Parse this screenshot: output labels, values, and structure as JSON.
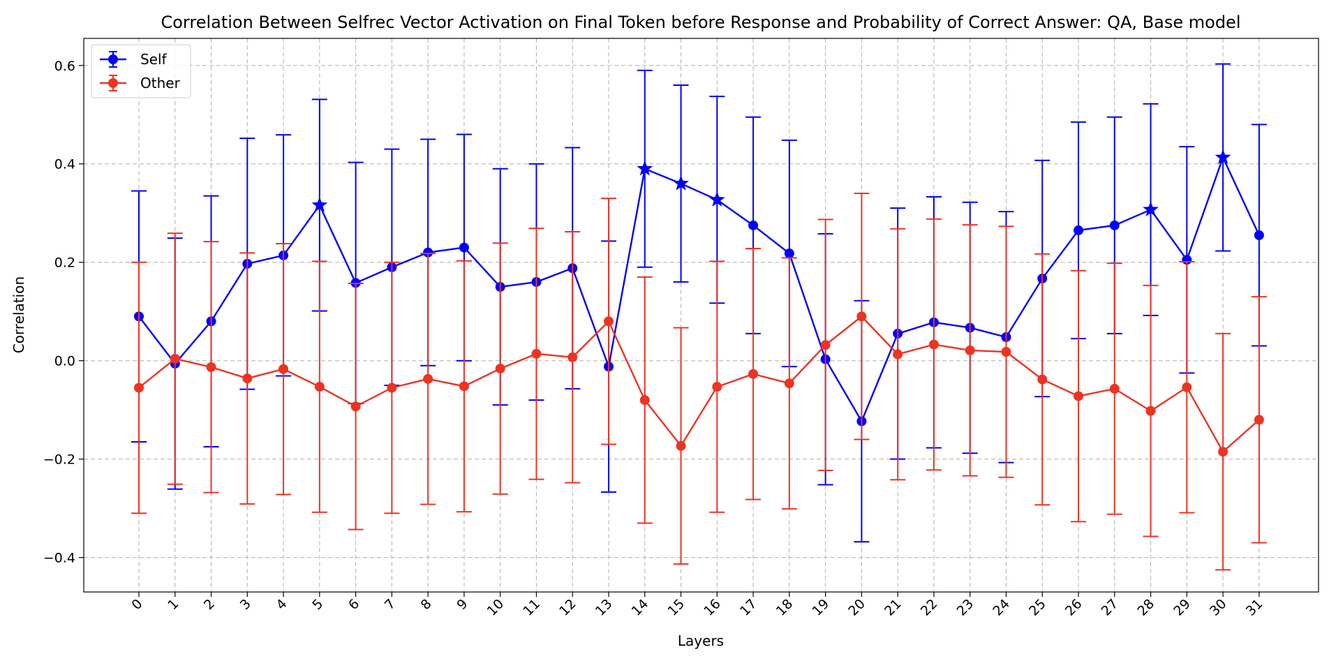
{
  "chart_data": {
    "type": "line",
    "title": "Correlation Between Selfrec Vector Activation on Final Token before Response and Probability of Correct Answer: QA, Base model",
    "xlabel": "Layers",
    "ylabel": "Correlation",
    "x": [
      0,
      1,
      2,
      3,
      4,
      5,
      6,
      7,
      8,
      9,
      10,
      11,
      12,
      13,
      14,
      15,
      16,
      17,
      18,
      19,
      20,
      21,
      22,
      23,
      24,
      25,
      26,
      27,
      28,
      29,
      30,
      31
    ],
    "x_tick_labels": [
      "0",
      "1",
      "2",
      "3",
      "4",
      "5",
      "6",
      "7",
      "8",
      "9",
      "10",
      "11",
      "12",
      "13",
      "14",
      "15",
      "16",
      "17",
      "18",
      "19",
      "20",
      "21",
      "22",
      "23",
      "24",
      "25",
      "26",
      "27",
      "28",
      "29",
      "30",
      "31"
    ],
    "ylim": [
      -0.47,
      0.655
    ],
    "y_ticks": [
      -0.4,
      -0.2,
      0.0,
      0.2,
      0.4,
      0.6
    ],
    "y_tick_labels": [
      "−0.4",
      "−0.2",
      "0.0",
      "0.2",
      "0.4",
      "0.6"
    ],
    "grid": true,
    "legend_position": "top-left",
    "series": [
      {
        "name": "Self",
        "color": "#0000ff",
        "values": [
          0.09,
          -0.006,
          0.08,
          0.197,
          0.214,
          0.316,
          0.158,
          0.19,
          0.22,
          0.23,
          0.15,
          0.16,
          0.188,
          -0.012,
          0.39,
          0.36,
          0.327,
          0.275,
          0.218,
          0.003,
          -0.123,
          0.055,
          0.078,
          0.067,
          0.048,
          0.167,
          0.265,
          0.275,
          0.307,
          0.205,
          0.413,
          0.255
        ],
        "errors": [
          0.255,
          0.255,
          0.255,
          0.255,
          0.245,
          0.215,
          0.245,
          0.24,
          0.23,
          0.23,
          0.24,
          0.24,
          0.245,
          0.255,
          0.2,
          0.2,
          0.21,
          0.22,
          0.23,
          0.255,
          0.245,
          0.255,
          0.255,
          0.255,
          0.255,
          0.24,
          0.22,
          0.22,
          0.215,
          0.23,
          0.19,
          0.225
        ],
        "markers": [
          "circle",
          "circle",
          "circle",
          "circle",
          "circle",
          "star",
          "circle",
          "circle",
          "circle",
          "circle",
          "circle",
          "circle",
          "circle",
          "circle",
          "star",
          "star",
          "star",
          "circle",
          "circle",
          "circle",
          "circle",
          "circle",
          "circle",
          "circle",
          "circle",
          "circle",
          "circle",
          "circle",
          "star",
          "circle",
          "star",
          "circle"
        ]
      },
      {
        "name": "Other",
        "color": "#ee3322",
        "values": [
          -0.055,
          0.004,
          -0.013,
          -0.036,
          -0.017,
          -0.053,
          -0.093,
          -0.055,
          -0.037,
          -0.052,
          -0.016,
          0.014,
          0.007,
          0.08,
          -0.08,
          -0.173,
          -0.053,
          -0.027,
          -0.046,
          0.032,
          0.09,
          0.013,
          0.033,
          0.021,
          0.018,
          -0.038,
          -0.072,
          -0.057,
          -0.102,
          -0.054,
          -0.185,
          -0.12
        ],
        "errors": [
          0.255,
          0.255,
          0.255,
          0.255,
          0.255,
          0.255,
          0.25,
          0.255,
          0.255,
          0.255,
          0.255,
          0.255,
          0.255,
          0.25,
          0.25,
          0.24,
          0.255,
          0.255,
          0.255,
          0.255,
          0.25,
          0.255,
          0.255,
          0.255,
          0.255,
          0.255,
          0.255,
          0.255,
          0.255,
          0.255,
          0.24,
          0.25
        ],
        "markers": [
          "circle",
          "circle",
          "circle",
          "circle",
          "circle",
          "circle",
          "circle",
          "circle",
          "circle",
          "circle",
          "circle",
          "circle",
          "circle",
          "circle",
          "circle",
          "circle",
          "circle",
          "circle",
          "circle",
          "circle",
          "circle",
          "circle",
          "circle",
          "circle",
          "circle",
          "circle",
          "circle",
          "circle",
          "circle",
          "circle",
          "circle",
          "circle"
        ]
      }
    ]
  }
}
